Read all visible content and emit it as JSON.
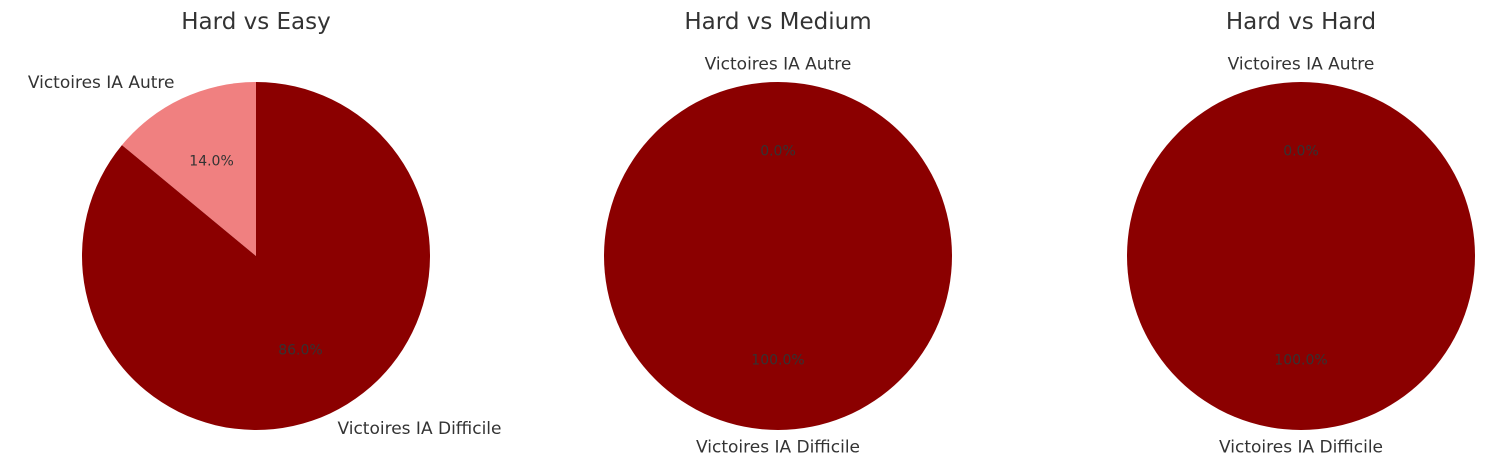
{
  "chart_data": [
    {
      "type": "pie",
      "title": "Hard vs Easy",
      "slices": [
        {
          "label": "Victoires IA Autre",
          "value": 14.0,
          "pct_label": "14.0%",
          "color": "#f08080"
        },
        {
          "label": "Victoires IA Difficile",
          "value": 86.0,
          "pct_label": "86.0%",
          "color": "#8b0000"
        }
      ]
    },
    {
      "type": "pie",
      "title": "Hard vs Medium",
      "slices": [
        {
          "label": "Victoires IA Autre",
          "value": 0.0,
          "pct_label": "0.0%",
          "color": "#f08080"
        },
        {
          "label": "Victoires IA Difficile",
          "value": 100.0,
          "pct_label": "100.0%",
          "color": "#8b0000"
        }
      ]
    },
    {
      "type": "pie",
      "title": "Hard vs Hard",
      "slices": [
        {
          "label": "Victoires IA Autre",
          "value": 0.0,
          "pct_label": "0.0%",
          "color": "#f08080"
        },
        {
          "label": "Victoires IA Difficile",
          "value": 100.0,
          "pct_label": "100.0%",
          "color": "#8b0000"
        }
      ]
    }
  ]
}
